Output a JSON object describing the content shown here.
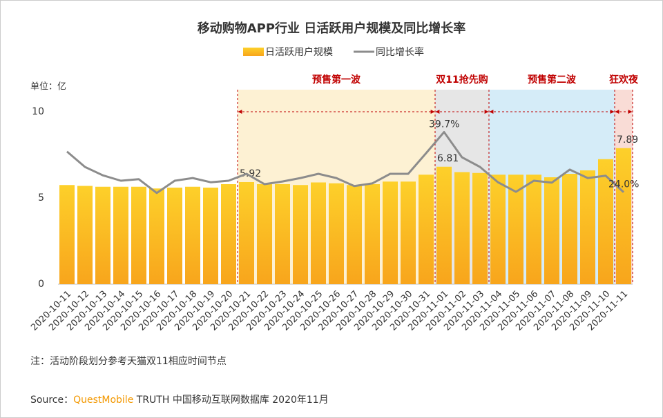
{
  "chart_data": {
    "type": "bar_line",
    "title": "移动购物APP行业 日活跃用户规模及同比增长率",
    "unit_label": "单位：亿",
    "categories": [
      "2020-10-11",
      "2020-10-12",
      "2020-10-13",
      "2020-10-14",
      "2020-10-15",
      "2020-10-16",
      "2020-10-17",
      "2020-10-18",
      "2020-10-19",
      "2020-10-20",
      "2020-10-21",
      "2020-10-22",
      "2020-10-23",
      "2020-10-24",
      "2020-10-25",
      "2020-10-26",
      "2020-10-27",
      "2020-10-28",
      "2020-10-29",
      "2020-10-30",
      "2020-10-31",
      "2020-11-01",
      "2020-11-02",
      "2020-11-03",
      "2020-11-04",
      "2020-11-05",
      "2020-11-06",
      "2020-11-07",
      "2020-11-08",
      "2020-11-09",
      "2020-11-10",
      "2020-11-11"
    ],
    "series": [
      {
        "name": "日活跃用户规模",
        "type": "bar",
        "color": "#fbb917",
        "values": [
          5.75,
          5.7,
          5.65,
          5.65,
          5.65,
          5.55,
          5.6,
          5.65,
          5.6,
          5.8,
          5.92,
          5.8,
          5.8,
          5.75,
          5.9,
          5.85,
          5.75,
          5.8,
          5.95,
          5.95,
          6.35,
          6.81,
          6.5,
          6.45,
          6.35,
          6.35,
          6.35,
          6.2,
          6.4,
          6.6,
          7.25,
          7.89
        ],
        "value_labels": [
          null,
          null,
          null,
          null,
          null,
          null,
          null,
          null,
          null,
          null,
          "5.92",
          null,
          null,
          null,
          null,
          null,
          null,
          null,
          null,
          null,
          null,
          "6.81",
          null,
          null,
          null,
          null,
          null,
          null,
          null,
          null,
          null,
          "7.89"
        ]
      },
      {
        "name": "同比增长率",
        "type": "line",
        "axis": "y2",
        "color": "#8c8c8c",
        "values": [
          34.6,
          30.6,
          28.4,
          27,
          27.4,
          23.8,
          27,
          27.7,
          26.6,
          27,
          28.8,
          26.1,
          26.8,
          27.7,
          28.8,
          27.7,
          25.6,
          26.3,
          28.8,
          28.8,
          34.2,
          39.7,
          33.1,
          30.6,
          26.6,
          24.1,
          27,
          26.5,
          29.9,
          27.7,
          28.3,
          24.0
        ],
        "value_labels": [
          null,
          null,
          null,
          null,
          null,
          null,
          null,
          null,
          null,
          null,
          null,
          null,
          null,
          null,
          null,
          null,
          null,
          null,
          null,
          null,
          null,
          "39.7%",
          null,
          null,
          null,
          null,
          null,
          null,
          null,
          null,
          null,
          "24.0%"
        ]
      }
    ],
    "ylim": [
      0,
      10
    ],
    "yticks": [
      0,
      5,
      10
    ],
    "y2lim": [
      0,
      45
    ],
    "phases": [
      {
        "label": "预售第一波",
        "start": "2020-10-21",
        "end": "2020-10-31",
        "color": "#fdf1d3"
      },
      {
        "label": "双11抢先购",
        "start": "2020-11-01",
        "end": "2020-11-03",
        "color": "#e6e6e6"
      },
      {
        "label": "预售第二波",
        "start": "2020-11-04",
        "end": "2020-11-10",
        "color": "#d5ecf8"
      },
      {
        "label": "狂欢夜",
        "start": "2020-11-11",
        "end": "2020-11-11",
        "color": "#f9dcd6"
      }
    ],
    "note": "注：活动阶段划分参考天猫双11相应时间节点",
    "source": {
      "prefix": "Source：",
      "brand": "QuestMobile",
      "rest": " TRUTH 中国移动互联网数据库 2020年11月"
    }
  }
}
